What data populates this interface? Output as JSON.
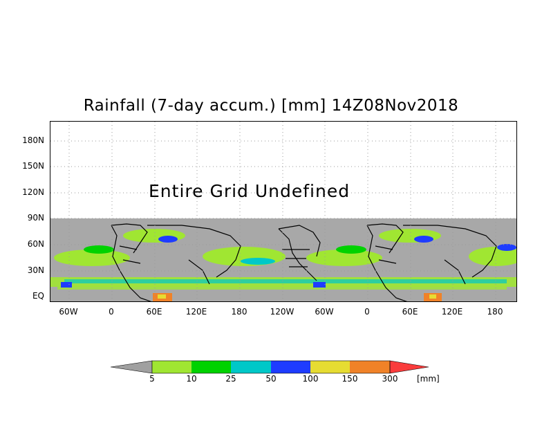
{
  "title": "Rainfall (7-day accum.) [mm] 14Z08Nov2018",
  "map": {
    "annotation": "Entire Grid Undefined",
    "lat_ticks": [
      "180N",
      "150N",
      "120N",
      "90N",
      "60N",
      "30N",
      "EQ"
    ],
    "lon_ticks": [
      "60W",
      "0",
      "60E",
      "120E",
      "180",
      "120W",
      "60W",
      "0",
      "60E",
      "120E",
      "180"
    ],
    "data_extent": {
      "lat_min": 0,
      "lat_max": 90
    },
    "axis_extent": {
      "lat_min": -10,
      "lat_max": 200
    }
  },
  "colorbar": {
    "labels": [
      "5",
      "10",
      "25",
      "50",
      "100",
      "150",
      "300"
    ],
    "units": "[mm]",
    "colors": {
      "below": "#a0a0a0",
      "bins": [
        "#a0e632",
        "#00d200",
        "#00c8c8",
        "#1e3cff",
        "#e6dc32",
        "#f08228"
      ],
      "above": "#fa3c3c"
    }
  },
  "colors": {
    "undefined_gray": "#a8a8a8",
    "land_outline": "#000000",
    "grid": "#9a9a9a"
  }
}
